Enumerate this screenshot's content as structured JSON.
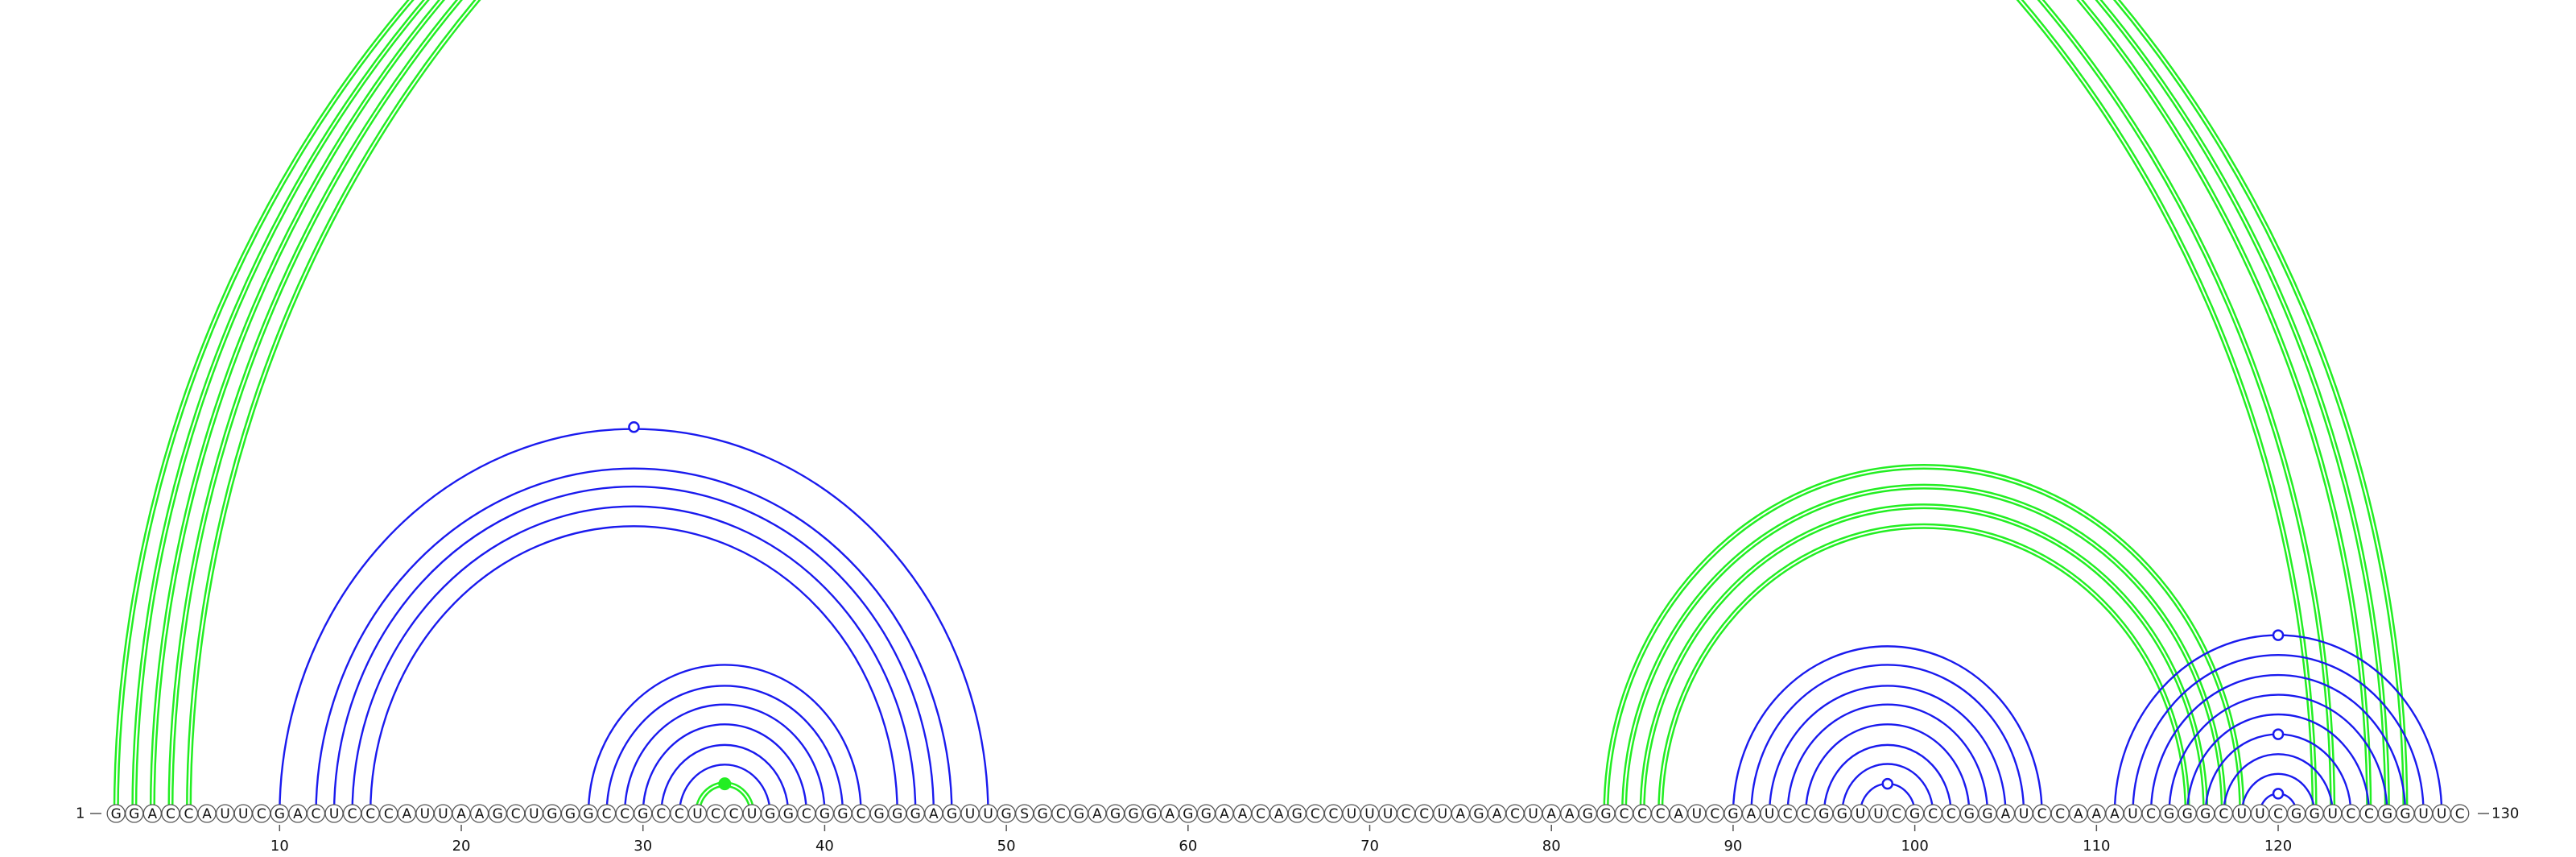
{
  "sequence": "GGACCAUUCGACUCCCAUUAAGCUGGGCCGCCUCCUGGCGGCGGGAGUUGSGCGAGGGAGGAACAGCCUUUCCUAGACUAAGGCCCAUCGAUCCGGUUCGCCGGAUCCAAAUCGGGCUUCGGUCCGGUUC",
  "start_label": "1",
  "end_label": "130",
  "axis_ticks": [
    "10",
    "20",
    "30",
    "40",
    "50",
    "60",
    "70",
    "80",
    "90",
    "100",
    "110",
    "120"
  ],
  "colors": {
    "blue": "#1a1aee",
    "green": "#22ee22",
    "outline": "#555555",
    "text": "#111111"
  },
  "arcs": [
    {
      "i": 1,
      "j": 122,
      "color": "green"
    },
    {
      "i": 2,
      "j": 123,
      "color": "green"
    },
    {
      "i": 3,
      "j": 125,
      "color": "green"
    },
    {
      "i": 4,
      "j": 126,
      "color": "green"
    },
    {
      "i": 5,
      "j": 127,
      "color": "green"
    },
    {
      "i": 10,
      "j": 49,
      "color": "blue"
    },
    {
      "i": 12,
      "j": 47,
      "color": "blue"
    },
    {
      "i": 13,
      "j": 46,
      "color": "blue"
    },
    {
      "i": 14,
      "j": 45,
      "color": "blue"
    },
    {
      "i": 15,
      "j": 44,
      "color": "blue"
    },
    {
      "i": 27,
      "j": 42,
      "color": "blue"
    },
    {
      "i": 28,
      "j": 41,
      "color": "blue"
    },
    {
      "i": 29,
      "j": 40,
      "color": "blue"
    },
    {
      "i": 30,
      "j": 39,
      "color": "blue"
    },
    {
      "i": 31,
      "j": 38,
      "color": "blue"
    },
    {
      "i": 32,
      "j": 37,
      "color": "blue"
    },
    {
      "i": 33,
      "j": 36,
      "color": "green"
    },
    {
      "i": 83,
      "j": 118,
      "color": "green"
    },
    {
      "i": 84,
      "j": 117,
      "color": "green"
    },
    {
      "i": 85,
      "j": 116,
      "color": "green"
    },
    {
      "i": 86,
      "j": 115,
      "color": "green"
    },
    {
      "i": 90,
      "j": 107,
      "color": "blue"
    },
    {
      "i": 91,
      "j": 106,
      "color": "blue"
    },
    {
      "i": 92,
      "j": 105,
      "color": "blue"
    },
    {
      "i": 93,
      "j": 104,
      "color": "blue"
    },
    {
      "i": 94,
      "j": 103,
      "color": "blue"
    },
    {
      "i": 95,
      "j": 102,
      "color": "blue"
    },
    {
      "i": 96,
      "j": 101,
      "color": "blue"
    },
    {
      "i": 97,
      "j": 100,
      "color": "blue"
    },
    {
      "i": 111,
      "j": 129,
      "color": "blue"
    },
    {
      "i": 112,
      "j": 128,
      "color": "blue"
    },
    {
      "i": 113,
      "j": 127,
      "color": "blue"
    },
    {
      "i": 114,
      "j": 126,
      "color": "blue"
    },
    {
      "i": 115,
      "j": 125,
      "color": "blue"
    },
    {
      "i": 116,
      "j": 124,
      "color": "blue"
    },
    {
      "i": 117,
      "j": 123,
      "color": "blue"
    },
    {
      "i": 118,
      "j": 122,
      "color": "blue"
    },
    {
      "i": 119,
      "j": 121,
      "color": "blue"
    }
  ],
  "markers": [
    {
      "pos": 29.5,
      "arc": "10-49",
      "style": "open",
      "color": "blue"
    },
    {
      "pos": 34.5,
      "arc": "33-36",
      "style": "filled",
      "color": "green"
    },
    {
      "pos": 98.5,
      "arc": "97-100",
      "style": "open",
      "color": "blue"
    },
    {
      "pos": 120,
      "arc": "111-129",
      "style": "open",
      "color": "blue"
    },
    {
      "pos": 120,
      "arc": "116-124",
      "style": "open",
      "color": "blue"
    },
    {
      "pos": 120,
      "arc": "119-121",
      "style": "open",
      "color": "blue"
    }
  ]
}
